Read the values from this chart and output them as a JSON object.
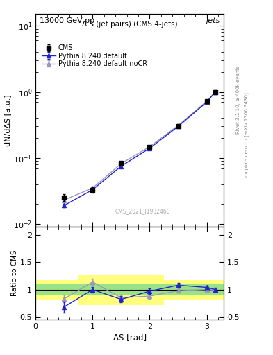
{
  "title_top": "13000 GeV pp",
  "title_right": "Jets",
  "plot_title": "Δ S (jet pairs) (CMS 4-jets)",
  "xlabel": "ΔS [rad]",
  "ylabel_main": "dN/dΔS [a.u.]",
  "ylabel_ratio": "Ratio to CMS",
  "watermark": "CMS_2021_I1932460",
  "right_label1": "Rivet 3.1.10, ≥ 400k events",
  "right_label2": "mcplots.cern.ch [arXiv:1306.3436]",
  "cms_x": [
    0.5,
    1.0,
    1.5,
    2.0,
    2.5,
    3.0,
    3.15
  ],
  "cms_y": [
    0.025,
    0.033,
    0.083,
    0.145,
    0.3,
    0.72,
    1.0
  ],
  "cms_yerr": [
    0.003,
    0.003,
    0.005,
    0.008,
    0.015,
    0.04,
    0.05
  ],
  "py_def_x": [
    0.5,
    1.0,
    1.5,
    2.0,
    2.5,
    3.0,
    3.15
  ],
  "py_def_y": [
    0.019,
    0.033,
    0.075,
    0.14,
    0.3,
    0.7,
    1.0
  ],
  "py_def_yerr": [
    0.001,
    0.001,
    0.003,
    0.005,
    0.01,
    0.03,
    0.04
  ],
  "py_nocr_x": [
    0.5,
    1.0,
    1.5,
    2.0,
    2.5,
    3.0,
    3.15
  ],
  "py_nocr_y": [
    0.023,
    0.035,
    0.082,
    0.148,
    0.31,
    0.72,
    1.0
  ],
  "py_nocr_yerr": [
    0.001,
    0.002,
    0.003,
    0.006,
    0.012,
    0.03,
    0.04
  ],
  "ratio_py_def_y": [
    0.68,
    1.0,
    0.82,
    0.97,
    1.08,
    1.04,
    1.0
  ],
  "ratio_py_def_yerr": [
    0.1,
    0.05,
    0.06,
    0.05,
    0.04,
    0.03,
    0.03
  ],
  "ratio_py_nocr_y": [
    0.83,
    1.14,
    0.85,
    0.88,
    0.98,
    1.0,
    0.99
  ],
  "ratio_py_nocr_yerr": [
    0.07,
    0.06,
    0.05,
    0.05,
    0.04,
    0.03,
    0.03
  ],
  "bin_edges": [
    0.0,
    0.75,
    1.5,
    2.25,
    3.3
  ],
  "yellow_low": [
    0.82,
    0.72,
    0.72,
    0.82
  ],
  "yellow_high": [
    1.18,
    1.28,
    1.28,
    1.18
  ],
  "green_low": [
    0.9,
    0.9,
    0.9,
    0.9
  ],
  "green_high": [
    1.1,
    1.1,
    1.1,
    1.1
  ],
  "ylim_main": [
    0.009,
    15.0
  ],
  "ylim_ratio": [
    0.45,
    2.15
  ],
  "xlim": [
    0.0,
    3.3
  ],
  "cms_color": "#000000",
  "py_def_color": "#2222cc",
  "py_nocr_color": "#9999bb",
  "figsize": [
    3.93,
    5.12
  ],
  "dpi": 100
}
